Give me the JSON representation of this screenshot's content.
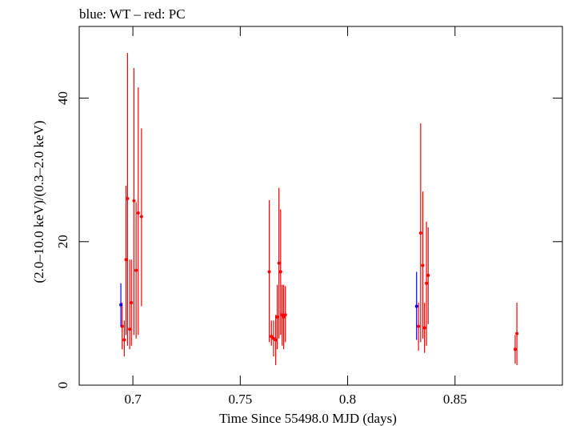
{
  "chart_data": {
    "type": "scatter",
    "title": "blue: WT – red: PC",
    "xlabel": "Time Since 55498.0 MJD (days)",
    "ylabel": "(2.0–10.0 keV)/(0.3–2.0 keV)",
    "xlim": [
      0.675,
      0.9
    ],
    "ylim": [
      0,
      50
    ],
    "xticks": [
      0.7,
      0.75,
      0.8,
      0.85
    ],
    "xtick_labels": [
      "0.7",
      "0.75",
      "0.8",
      "0.85"
    ],
    "yticks": [
      0,
      20,
      40
    ],
    "ytick_labels": [
      "0",
      "20",
      "40"
    ],
    "grid": false,
    "series": [
      {
        "color": "#0000ff",
        "points": [
          {
            "x": 0.6944,
            "y": 11.2,
            "lo": 8.2,
            "hi": 14.2
          },
          {
            "x": 0.8321,
            "y": 11.0,
            "lo": 6.3,
            "hi": 15.8
          }
        ]
      },
      {
        "color": "#ff0000",
        "points": [
          {
            "x": 0.695,
            "y": 8.2,
            "lo": 5.0,
            "hi": 11.5
          },
          {
            "x": 0.696,
            "y": 6.3,
            "lo": 4.0,
            "hi": 9.0
          },
          {
            "x": 0.6968,
            "y": 17.5,
            "lo": 7.0,
            "hi": 27.8
          },
          {
            "x": 0.6975,
            "y": 26.0,
            "lo": 5.5,
            "hi": 46.3
          },
          {
            "x": 0.6985,
            "y": 7.8,
            "lo": 5.0,
            "hi": 17.5
          },
          {
            "x": 0.6993,
            "y": 11.5,
            "lo": 5.5,
            "hi": 17.5
          },
          {
            "x": 0.7005,
            "y": 25.7,
            "lo": 7.0,
            "hi": 44.2
          },
          {
            "x": 0.7015,
            "y": 16.0,
            "lo": 6.5,
            "hi": 25.5
          },
          {
            "x": 0.7025,
            "y": 24.0,
            "lo": 7.0,
            "hi": 41.5
          },
          {
            "x": 0.704,
            "y": 23.5,
            "lo": 11.0,
            "hi": 35.8
          },
          {
            "x": 0.7635,
            "y": 15.8,
            "lo": 6.0,
            "hi": 25.8
          },
          {
            "x": 0.7645,
            "y": 6.8,
            "lo": 5.5,
            "hi": 9.0
          },
          {
            "x": 0.7655,
            "y": 6.5,
            "lo": 4.0,
            "hi": 9.0
          },
          {
            "x": 0.7665,
            "y": 6.3,
            "lo": 2.8,
            "hi": 9.8
          },
          {
            "x": 0.7672,
            "y": 9.5,
            "lo": 5.0,
            "hi": 14.0
          },
          {
            "x": 0.768,
            "y": 17.0,
            "lo": 6.5,
            "hi": 27.5
          },
          {
            "x": 0.7688,
            "y": 15.8,
            "lo": 7.0,
            "hi": 24.5
          },
          {
            "x": 0.7695,
            "y": 9.8,
            "lo": 5.5,
            "hi": 14.0
          },
          {
            "x": 0.7702,
            "y": 9.5,
            "lo": 5.0,
            "hi": 14.0
          },
          {
            "x": 0.771,
            "y": 9.8,
            "lo": 6.0,
            "hi": 13.8
          },
          {
            "x": 0.833,
            "y": 8.2,
            "lo": 4.8,
            "hi": 11.5
          },
          {
            "x": 0.834,
            "y": 21.2,
            "lo": 6.0,
            "hi": 36.5
          },
          {
            "x": 0.835,
            "y": 16.7,
            "lo": 6.5,
            "hi": 27.0
          },
          {
            "x": 0.8358,
            "y": 8.0,
            "lo": 4.5,
            "hi": 11.5
          },
          {
            "x": 0.8367,
            "y": 14.2,
            "lo": 5.5,
            "hi": 22.8
          },
          {
            "x": 0.8375,
            "y": 15.3,
            "lo": 8.5,
            "hi": 22.0
          },
          {
            "x": 0.878,
            "y": 5.0,
            "lo": 3.0,
            "hi": 7.0
          },
          {
            "x": 0.8788,
            "y": 7.2,
            "lo": 2.8,
            "hi": 11.5
          }
        ]
      }
    ]
  }
}
